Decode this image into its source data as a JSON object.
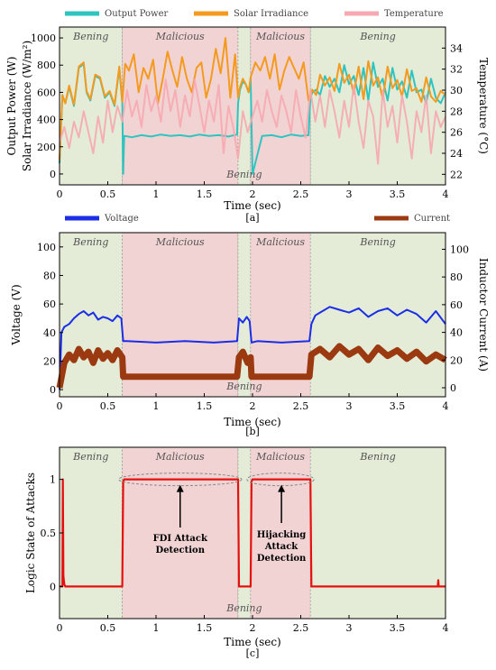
{
  "chart_data": [
    {
      "type": "line",
      "panel": "[a]",
      "xlabel": "Time (sec)",
      "ylabel_left": "Output Power (W)",
      "ylabel_left2": "Solar Irradiance (W/m²)",
      "ylabel_right": "Temperature (°C)",
      "xlim": [
        0,
        4
      ],
      "ylim_left": [
        -80,
        1080
      ],
      "ylim_right": [
        21,
        36
      ],
      "x_ticks": [
        "0",
        "0.5",
        "1",
        "1.5",
        "2",
        "2.5",
        "3",
        "3.5",
        "4"
      ],
      "y_ticks_left": [
        "0",
        "200",
        "400",
        "600",
        "800",
        "1000"
      ],
      "y_ticks_right": [
        "22",
        "24",
        "26",
        "28",
        "30",
        "32",
        "34"
      ],
      "legend_location": "top",
      "regions": [
        {
          "label": "Bening",
          "start": 0,
          "end": 0.65,
          "kind": "benign"
        },
        {
          "label": "Malicious",
          "start": 0.65,
          "end": 1.85,
          "kind": "malicious"
        },
        {
          "label": "Bening",
          "start": 1.85,
          "end": 1.98,
          "kind": "benign"
        },
        {
          "label": "Malicious",
          "start": 1.98,
          "end": 2.6,
          "kind": "malicious"
        },
        {
          "label": "Bening",
          "start": 2.6,
          "end": 4.0,
          "kind": "benign"
        }
      ],
      "gap_label": "Bening",
      "series": [
        {
          "name": "Output Power",
          "axis": "left",
          "color": "#2ec4c0",
          "x": [
            0,
            0.03,
            0.06,
            0.1,
            0.15,
            0.2,
            0.25,
            0.28,
            0.32,
            0.37,
            0.42,
            0.47,
            0.52,
            0.57,
            0.62,
            0.65,
            0.66,
            0.67,
            0.75,
            0.85,
            0.95,
            1.05,
            1.15,
            1.25,
            1.35,
            1.45,
            1.55,
            1.65,
            1.75,
            1.84,
            1.85,
            1.87,
            1.9,
            1.93,
            1.96,
            1.98,
            2.0,
            2.1,
            2.2,
            2.3,
            2.4,
            2.5,
            2.58,
            2.6,
            2.62,
            2.66,
            2.7,
            2.75,
            2.8,
            2.85,
            2.9,
            2.95,
            3.0,
            3.05,
            3.1,
            3.15,
            3.2,
            3.25,
            3.3,
            3.35,
            3.4,
            3.45,
            3.5,
            3.55,
            3.6,
            3.65,
            3.7,
            3.75,
            3.8,
            3.85,
            3.9,
            3.95,
            4.0
          ],
          "y": [
            80,
            580,
            520,
            640,
            500,
            780,
            810,
            600,
            540,
            720,
            700,
            560,
            600,
            500,
            780,
            520,
            0,
            280,
            270,
            285,
            275,
            290,
            280,
            285,
            275,
            290,
            280,
            285,
            275,
            290,
            520,
            620,
            680,
            660,
            600,
            700,
            0,
            280,
            285,
            270,
            290,
            280,
            285,
            560,
            600,
            620,
            580,
            720,
            640,
            700,
            600,
            800,
            660,
            720,
            580,
            780,
            540,
            820,
            640,
            700,
            540,
            780,
            620,
            680,
            560,
            760,
            600,
            620,
            520,
            700,
            560,
            520,
            600
          ]
        },
        {
          "name": "Solar Irradiance",
          "axis": "left",
          "color": "#f39a1f",
          "x": [
            0,
            0.03,
            0.06,
            0.1,
            0.15,
            0.2,
            0.25,
            0.28,
            0.32,
            0.37,
            0.42,
            0.47,
            0.52,
            0.57,
            0.62,
            0.65,
            0.68,
            0.72,
            0.77,
            0.82,
            0.87,
            0.92,
            0.97,
            1.02,
            1.07,
            1.12,
            1.17,
            1.22,
            1.27,
            1.32,
            1.37,
            1.42,
            1.47,
            1.52,
            1.57,
            1.62,
            1.67,
            1.72,
            1.77,
            1.82,
            1.85,
            1.87,
            1.9,
            1.93,
            1.96,
            1.98,
            2.03,
            2.08,
            2.13,
            2.18,
            2.23,
            2.28,
            2.33,
            2.38,
            2.43,
            2.48,
            2.53,
            2.58,
            2.6,
            2.62,
            2.66,
            2.7,
            2.75,
            2.8,
            2.85,
            2.9,
            2.95,
            3.0,
            3.05,
            3.1,
            3.15,
            3.2,
            3.25,
            3.3,
            3.35,
            3.4,
            3.45,
            3.5,
            3.55,
            3.6,
            3.65,
            3.7,
            3.75,
            3.8,
            3.85,
            3.9,
            3.95,
            4.0
          ],
          "y": [
            100,
            580,
            520,
            650,
            510,
            790,
            820,
            610,
            550,
            730,
            710,
            570,
            610,
            510,
            790,
            530,
            810,
            760,
            880,
            600,
            780,
            700,
            840,
            520,
            700,
            900,
            760,
            640,
            860,
            700,
            600,
            780,
            820,
            560,
            700,
            920,
            740,
            1000,
            560,
            880,
            560,
            640,
            700,
            660,
            600,
            710,
            820,
            760,
            860,
            700,
            880,
            620,
            760,
            860,
            780,
            700,
            820,
            540,
            580,
            620,
            580,
            730,
            650,
            710,
            610,
            810,
            670,
            730,
            590,
            790,
            550,
            830,
            650,
            710,
            550,
            790,
            630,
            690,
            570,
            770,
            610,
            630,
            530,
            710,
            570,
            530,
            610,
            580
          ]
        },
        {
          "name": "Temperature",
          "axis": "right",
          "color": "#f6a9b0",
          "x": [
            0,
            0.05,
            0.1,
            0.15,
            0.2,
            0.25,
            0.3,
            0.35,
            0.4,
            0.45,
            0.5,
            0.55,
            0.6,
            0.65,
            0.7,
            0.75,
            0.8,
            0.85,
            0.9,
            0.95,
            1.0,
            1.05,
            1.1,
            1.15,
            1.2,
            1.25,
            1.3,
            1.35,
            1.4,
            1.45,
            1.5,
            1.55,
            1.6,
            1.65,
            1.7,
            1.75,
            1.8,
            1.85,
            1.9,
            1.95,
            2.0,
            2.05,
            2.1,
            2.15,
            2.2,
            2.25,
            2.3,
            2.35,
            2.4,
            2.45,
            2.5,
            2.55,
            2.6,
            2.65,
            2.7,
            2.75,
            2.8,
            2.85,
            2.9,
            2.95,
            3.0,
            3.05,
            3.1,
            3.15,
            3.2,
            3.25,
            3.3,
            3.35,
            3.4,
            3.45,
            3.5,
            3.55,
            3.6,
            3.65,
            3.7,
            3.75,
            3.8,
            3.85,
            3.9,
            3.95,
            4.0
          ],
          "y": [
            25,
            26.5,
            24.5,
            27,
            25.5,
            28,
            26,
            24,
            27.5,
            25,
            29,
            26,
            28.5,
            27,
            30,
            27.5,
            29,
            26.5,
            30.5,
            28,
            29.5,
            27,
            31,
            28,
            30,
            26.5,
            29.5,
            27.5,
            31,
            28.5,
            26,
            29,
            27,
            30.5,
            24,
            28.5,
            26.5,
            23.5,
            28,
            26,
            27.5,
            29,
            27,
            30,
            28,
            26.5,
            29.5,
            28,
            26,
            30,
            27.5,
            25.5,
            30,
            27,
            29.5,
            26.5,
            30,
            28,
            25.5,
            29,
            26.5,
            30.5,
            27,
            24.5,
            29,
            27.5,
            23,
            30,
            26.5,
            28.5,
            25,
            29.5,
            27,
            23.5,
            28,
            26,
            29.5,
            24,
            28,
            26.5,
            27.5
          ]
        }
      ]
    },
    {
      "type": "line",
      "panel": "[b]",
      "xlabel": "Time (sec)",
      "ylabel_left": "Voltage (V)",
      "ylabel_right": "Inductor Current (A)",
      "xlim": [
        0,
        4
      ],
      "ylim_left": [
        -5,
        110
      ],
      "ylim_right": [
        -6.5,
        112
      ],
      "x_ticks": [
        "0",
        "0.5",
        "1",
        "1.5",
        "2",
        "2.5",
        "3",
        "3.5",
        "4"
      ],
      "y_ticks_left": [
        "0",
        "20",
        "40",
        "60",
        "80",
        "100"
      ],
      "y_ticks_right": [
        "0",
        "20",
        "40",
        "60",
        "80",
        "100"
      ],
      "legend_location": "top",
      "regions": [
        {
          "label": "Bening",
          "start": 0,
          "end": 0.65,
          "kind": "benign"
        },
        {
          "label": "Malicious",
          "start": 0.65,
          "end": 1.85,
          "kind": "malicious"
        },
        {
          "label": "Bening",
          "start": 1.85,
          "end": 1.98,
          "kind": "benign"
        },
        {
          "label": "Malicious",
          "start": 1.98,
          "end": 2.6,
          "kind": "malicious"
        },
        {
          "label": "Bening",
          "start": 2.6,
          "end": 4.0,
          "kind": "benign"
        }
      ],
      "gap_label": "Bening",
      "series": [
        {
          "name": "Voltage",
          "axis": "left",
          "color": "#1a2ee6",
          "x": [
            0,
            0.02,
            0.05,
            0.1,
            0.15,
            0.2,
            0.25,
            0.3,
            0.35,
            0.4,
            0.45,
            0.5,
            0.55,
            0.6,
            0.64,
            0.66,
            0.7,
            1.0,
            1.3,
            1.6,
            1.84,
            1.86,
            1.9,
            1.94,
            1.97,
            1.99,
            2.05,
            2.3,
            2.59,
            2.61,
            2.65,
            2.7,
            2.8,
            2.9,
            3.0,
            3.1,
            3.2,
            3.3,
            3.4,
            3.5,
            3.6,
            3.7,
            3.8,
            3.9,
            4.0
          ],
          "y": [
            0,
            40,
            44,
            46,
            50,
            53,
            55,
            52,
            54,
            49,
            51,
            50,
            48,
            52,
            50,
            34,
            34,
            33,
            34,
            33,
            34,
            50,
            47,
            51,
            48,
            33,
            34,
            33,
            34,
            46,
            52,
            54,
            58,
            56,
            54,
            57,
            51,
            55,
            57,
            52,
            56,
            53,
            47,
            55,
            46
          ]
        },
        {
          "name": "Current",
          "axis": "right",
          "color": "#9b3a10",
          "x": [
            0,
            0.05,
            0.1,
            0.15,
            0.2,
            0.25,
            0.3,
            0.35,
            0.4,
            0.45,
            0.5,
            0.55,
            0.6,
            0.65,
            0.66,
            0.7,
            1.0,
            1.3,
            1.6,
            1.84,
            1.86,
            1.9,
            1.95,
            1.98,
            1.99,
            2.1,
            2.3,
            2.59,
            2.61,
            2.7,
            2.8,
            2.9,
            3.0,
            3.1,
            3.2,
            3.3,
            3.4,
            3.5,
            3.6,
            3.7,
            3.8,
            3.9,
            4.0
          ],
          "y": [
            0,
            18,
            24,
            20,
            28,
            22,
            26,
            18,
            27,
            21,
            25,
            20,
            27,
            22,
            8,
            8,
            8,
            8,
            8,
            8,
            22,
            26,
            18,
            22,
            8,
            8,
            8,
            8,
            24,
            28,
            22,
            30,
            24,
            28,
            20,
            29,
            23,
            27,
            21,
            26,
            19,
            24,
            20
          ]
        }
      ]
    },
    {
      "type": "line",
      "panel": "[c]",
      "xlabel": "Time (sec)",
      "ylabel": "Logic State of Attacks",
      "xlim": [
        0,
        4
      ],
      "ylim": [
        -0.3,
        1.3
      ],
      "x_ticks": [
        "0",
        "0.5",
        "1",
        "1.5",
        "2",
        "2.5",
        "3",
        "3.5",
        "4"
      ],
      "y_ticks": [
        "0",
        "0.5",
        "1"
      ],
      "regions": [
        {
          "label": "Bening",
          "start": 0,
          "end": 0.65,
          "kind": "benign"
        },
        {
          "label": "Malicious",
          "start": 0.65,
          "end": 1.85,
          "kind": "malicious"
        },
        {
          "label": "Bening",
          "start": 1.85,
          "end": 1.98,
          "kind": "benign"
        },
        {
          "label": "Malicious",
          "start": 1.98,
          "end": 2.6,
          "kind": "malicious"
        },
        {
          "label": "Bening",
          "start": 2.6,
          "end": 4.0,
          "kind": "benign"
        }
      ],
      "gap_label": "Bening",
      "annotations": [
        {
          "label": "FDI Attack Detection",
          "line1": "FDI Attack",
          "line2": "Detection",
          "x": 1.25,
          "y": 1.0
        },
        {
          "label": "Hijacking Attack Detection",
          "line1": "Hijacking",
          "line2": "Attack",
          "line3": "Detection",
          "x": 2.3,
          "y": 1.0
        }
      ],
      "series": [
        {
          "name": "",
          "color": "#e61010",
          "x": [
            0,
            0.03,
            0.035,
            0.04,
            0.05,
            0.06,
            0.65,
            0.66,
            0.67,
            1.85,
            1.86,
            1.87,
            1.98,
            1.99,
            2.0,
            2.6,
            2.61,
            2.62,
            3.92,
            3.925,
            3.93,
            4.0
          ],
          "y": [
            0,
            0,
            1.0,
            0.1,
            0.02,
            0,
            0,
            0.98,
            1.0,
            1.0,
            0,
            0,
            0,
            0.98,
            1.0,
            1.0,
            0,
            0,
            0,
            0.06,
            0,
            0
          ]
        }
      ]
    }
  ]
}
